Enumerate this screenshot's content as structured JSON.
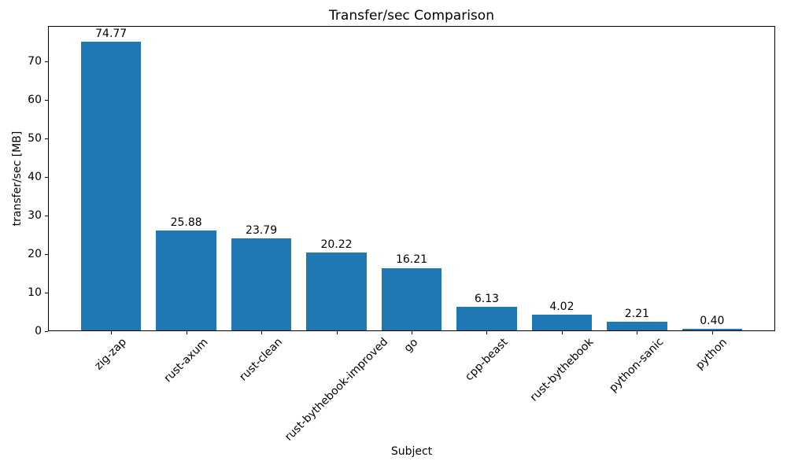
{
  "chart_data": {
    "type": "bar",
    "title": "Transfer/sec Comparison",
    "xlabel": "Subject",
    "ylabel": "transfer/sec [MB]",
    "categories": [
      "zig-zap",
      "rust-axum",
      "rust-clean",
      "rust-bythebook-improved",
      "go",
      "cpp-beast",
      "rust-bythebook",
      "python-sanic",
      "python"
    ],
    "values": [
      74.77,
      25.88,
      23.79,
      20.22,
      16.21,
      6.13,
      4.02,
      2.21,
      0.4
    ],
    "value_label_format": "2-decimals",
    "yticks": [
      0,
      10,
      20,
      30,
      40,
      50,
      60,
      70
    ],
    "ylim": [
      0,
      79.1
    ],
    "xlim": [
      -0.84,
      8.84
    ],
    "bar_width": 0.8,
    "bar_color": "#1f77b4",
    "text_color": "#000000",
    "grid": false,
    "legend": "none",
    "xtick_rotation_deg": 45
  }
}
